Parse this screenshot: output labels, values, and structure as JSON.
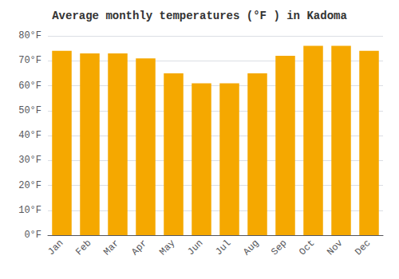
{
  "chart_data": {
    "type": "bar",
    "title": "Average monthly temperatures (°F ) in Kadoma",
    "categories": [
      "Jan",
      "Feb",
      "Mar",
      "Apr",
      "May",
      "Jun",
      "Jul",
      "Aug",
      "Sep",
      "Oct",
      "Nov",
      "Dec"
    ],
    "values": [
      74,
      73,
      73,
      71,
      65,
      61,
      61,
      65,
      72,
      76,
      76,
      74
    ],
    "color": "#F5A800",
    "ylim": [
      0,
      80
    ],
    "yticks": [
      {
        "value": 0,
        "label": "0°F"
      },
      {
        "value": 10,
        "label": "10°F"
      },
      {
        "value": 20,
        "label": "20°F"
      },
      {
        "value": 30,
        "label": "30°F"
      },
      {
        "value": 40,
        "label": "40°F"
      },
      {
        "value": 50,
        "label": "50°F"
      },
      {
        "value": 60,
        "label": "60°F"
      },
      {
        "value": 70,
        "label": "70°F"
      },
      {
        "value": 80,
        "label": "80°F"
      }
    ],
    "grid": true
  }
}
